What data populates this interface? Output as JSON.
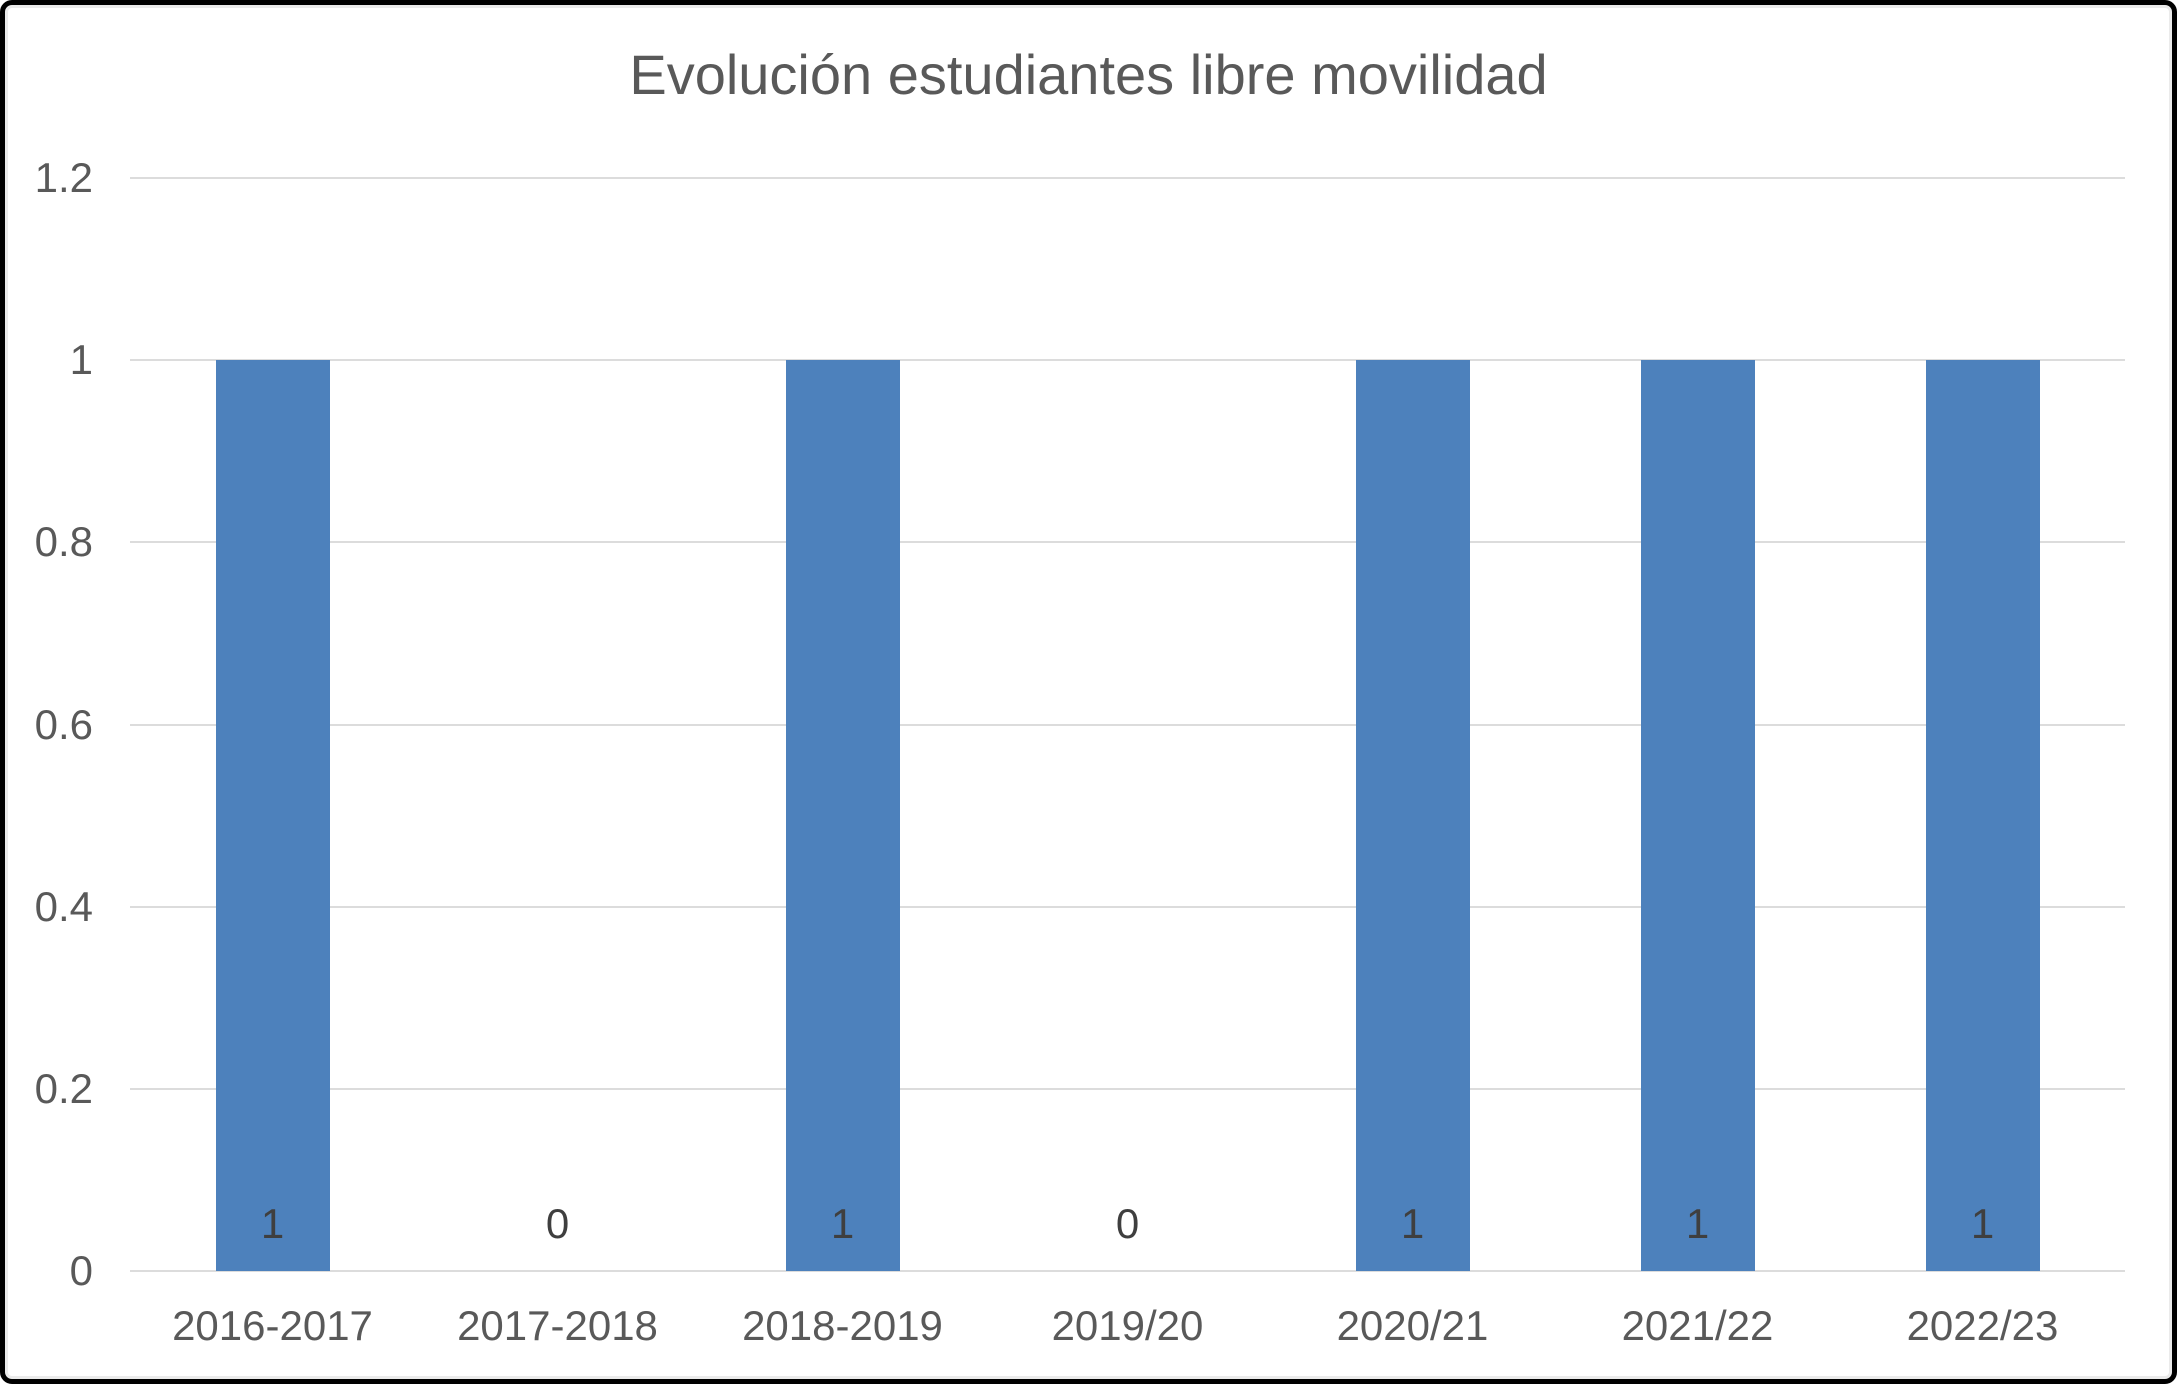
{
  "chart_data": {
    "type": "bar",
    "title": "Evolución estudiantes libre movilidad",
    "categories": [
      "2016-2017",
      "2017-2018",
      "2018-2019",
      "2019/20",
      "2020/21",
      "2021/22",
      "2022/23"
    ],
    "values": [
      1,
      0,
      1,
      0,
      1,
      1,
      1
    ],
    "data_labels": [
      "1",
      "0",
      "1",
      "0",
      "1",
      "1",
      "1"
    ],
    "xlabel": "",
    "ylabel": "",
    "y_ticks": [
      "0",
      "0.2",
      "0.4",
      "0.6",
      "0.8",
      "1",
      "1.2"
    ],
    "ylim": [
      0,
      1.2
    ],
    "grid": "horizontal",
    "legend": "none",
    "colors": {
      "bar": "#4d81bc",
      "gridline": "#dcdcdc",
      "title": "#595959",
      "axis_labels": "#595959",
      "data_labels": "#3f3f3f",
      "frame_border": "#000000"
    }
  }
}
